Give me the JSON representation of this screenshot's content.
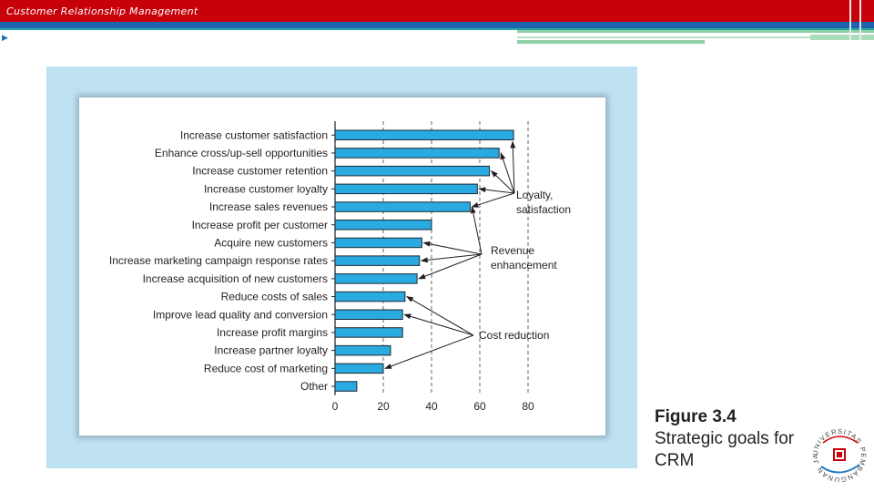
{
  "header": {
    "title": "Customer Relationship Management"
  },
  "colors": {
    "header_red": "#c8000a",
    "header_blue": "#1e63b0",
    "bar_fill": "#29aae1",
    "panel_bg": "#bfe2f2"
  },
  "caption": {
    "figure_number": "Figure 3.4",
    "title": "Strategic goals for CRM"
  },
  "logo": {
    "text": "UNIVERSITAS PEMBANGUNAN JAYA"
  },
  "chart_data": {
    "type": "bar",
    "orientation": "horizontal",
    "categories": [
      "Increase customer satisfaction",
      "Enhance cross/up-sell opportunities",
      "Increase customer retention",
      "Increase customer loyalty",
      "Increase sales revenues",
      "Increase profit per customer",
      "Acquire new customers",
      "Increase marketing campaign response rates",
      "Increase acquisition of new customers",
      "Reduce costs of sales",
      "Improve lead quality and conversion",
      "Increase profit margins",
      "Increase partner loyalty",
      "Reduce cost of marketing",
      "Other"
    ],
    "values": [
      74,
      68,
      64,
      59,
      56,
      40,
      36,
      35,
      34,
      29,
      28,
      28,
      23,
      20,
      9
    ],
    "xlim": [
      0,
      80
    ],
    "xticks": [
      0,
      20,
      40,
      60,
      80
    ],
    "xlabel": "",
    "ylabel": "",
    "grid": "vertical dashed",
    "annotations": [
      {
        "text": [
          "Loyalty,",
          "satisfaction"
        ],
        "targets": [
          0,
          1,
          2,
          3,
          4
        ]
      },
      {
        "text": [
          "Revenue",
          "enhancement"
        ],
        "targets": [
          4,
          6,
          7,
          8
        ]
      },
      {
        "text": [
          "Cost reduction"
        ],
        "targets": [
          9,
          10,
          13
        ]
      }
    ]
  }
}
